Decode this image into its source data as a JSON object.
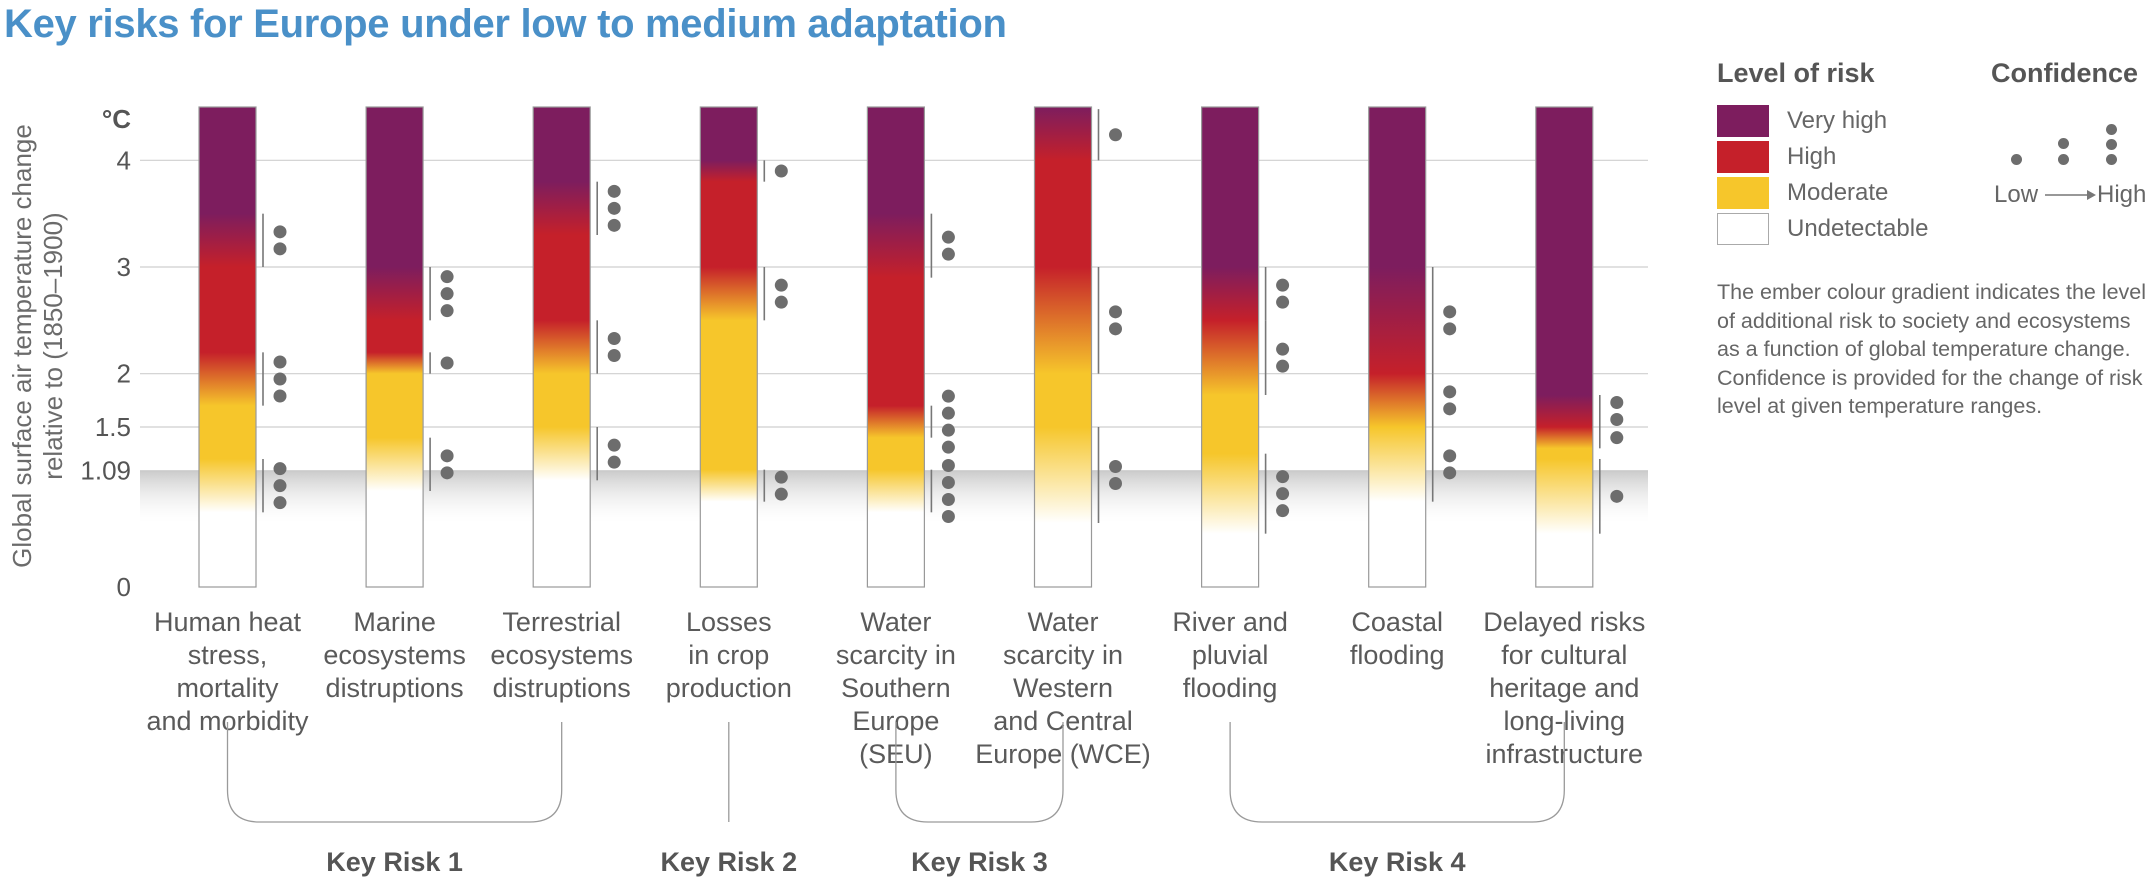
{
  "title": "Key risks for Europe under low to medium adaptation",
  "colors": {
    "very_high": "#7d1d5e",
    "high": "#c5202a",
    "moderate": "#f6c62b",
    "undetectable": "#ffffff",
    "title": "#4a90c8",
    "confidence_dot": "#6d6d6d"
  },
  "legend": {
    "level_title": "Level of risk",
    "levels": [
      "Very high",
      "High",
      "Moderate",
      "Undetectable"
    ],
    "confidence_title": "Confidence",
    "conf_low": "Low",
    "conf_high": "High",
    "note": "The ember colour gradient indicates the level of additional risk to society and ecosystems as a function of global temperature change. Confidence is provided for the change of risk level at given temperature ranges."
  },
  "chart_data": {
    "type": "burning-embers",
    "ylabel_line1": "Global surface air temperature change",
    "ylabel_line2": "relative to (1850–1900)",
    "unit": "°C",
    "ylim": [
      0,
      4.5
    ],
    "yticks": [
      {
        "value": 0,
        "label": "0"
      },
      {
        "value": 1.09,
        "label": "1.09"
      },
      {
        "value": 1.5,
        "label": "1.5"
      },
      {
        "value": 2,
        "label": "2"
      },
      {
        "value": 3,
        "label": "3"
      },
      {
        "value": 4,
        "label": "4"
      }
    ],
    "observed_warming": 1.09,
    "embers": [
      {
        "label": [
          "Human heat",
          "stress,",
          "mortality",
          "and morbidity"
        ],
        "transitions": [
          {
            "from": "undetectable",
            "to": "moderate",
            "start": 0.7,
            "end": 1.2,
            "confidence": 3
          },
          {
            "from": "moderate",
            "to": "high",
            "start": 1.7,
            "end": 2.2,
            "confidence": 3
          },
          {
            "from": "high",
            "to": "very_high",
            "start": 3.0,
            "end": 3.5,
            "confidence": 2
          }
        ]
      },
      {
        "label": [
          "Marine",
          "ecosystems",
          "distruptions"
        ],
        "transitions": [
          {
            "from": "undetectable",
            "to": "moderate",
            "start": 0.9,
            "end": 1.4,
            "confidence": 2
          },
          {
            "from": "moderate",
            "to": "high",
            "start": 2.0,
            "end": 2.2,
            "confidence": 1
          },
          {
            "from": "high",
            "to": "very_high",
            "start": 2.5,
            "end": 3.0,
            "confidence": 3
          }
        ]
      },
      {
        "label": [
          "Terrestrial",
          "ecosystems",
          "distruptions"
        ],
        "transitions": [
          {
            "from": "undetectable",
            "to": "moderate",
            "start": 1.0,
            "end": 1.5,
            "confidence": 2
          },
          {
            "from": "moderate",
            "to": "high",
            "start": 2.0,
            "end": 2.5,
            "confidence": 2
          },
          {
            "from": "high",
            "to": "very_high",
            "start": 3.3,
            "end": 3.8,
            "confidence": 3
          }
        ]
      },
      {
        "label": [
          "Losses",
          "in crop",
          "production"
        ],
        "transitions": [
          {
            "from": "undetectable",
            "to": "moderate",
            "start": 0.8,
            "end": 1.1,
            "confidence": 2
          },
          {
            "from": "moderate",
            "to": "high",
            "start": 2.5,
            "end": 3.0,
            "confidence": 2
          },
          {
            "from": "high",
            "to": "very_high",
            "start": 3.8,
            "end": 4.0,
            "confidence": 1
          }
        ]
      },
      {
        "label": [
          "Water",
          "scarcity in",
          "Southern",
          "Europe",
          "(SEU)"
        ],
        "transitions": [
          {
            "from": "undetectable",
            "to": "moderate",
            "start": 0.7,
            "end": 1.1,
            "confidence": 4
          },
          {
            "from": "moderate",
            "to": "high",
            "start": 1.4,
            "end": 1.7,
            "confidence": 4
          },
          {
            "from": "high",
            "to": "very_high",
            "start": 2.9,
            "end": 3.5,
            "confidence": 2
          }
        ]
      },
      {
        "label": [
          "Water",
          "scarcity in",
          "Western",
          "and Central",
          "Europe (WCE)"
        ],
        "transitions": [
          {
            "from": "undetectable",
            "to": "moderate",
            "start": 0.6,
            "end": 1.5,
            "confidence": 2
          },
          {
            "from": "moderate",
            "to": "high",
            "start": 2.0,
            "end": 3.0,
            "confidence": 2
          },
          {
            "from": "high",
            "to": "very_high",
            "start": 4.0,
            "end": 4.5,
            "confidence": 1
          }
        ]
      },
      {
        "label": [
          "River and",
          "pluvial",
          "flooding"
        ],
        "transitions": [
          {
            "from": "undetectable",
            "to": "moderate",
            "start": 0.5,
            "end": 1.25,
            "confidence": 3
          },
          {
            "from": "moderate",
            "to": "high",
            "start": 1.8,
            "end": 2.5,
            "confidence": 2
          },
          {
            "from": "high",
            "to": "very_high",
            "start": 2.5,
            "end": 3.0,
            "confidence": 2
          }
        ]
      },
      {
        "label": [
          "Coastal",
          "flooding"
        ],
        "transitions": [
          {
            "from": "undetectable",
            "to": "moderate",
            "start": 0.8,
            "end": 1.5,
            "confidence": 2
          },
          {
            "from": "moderate",
            "to": "high",
            "start": 1.5,
            "end": 2.0,
            "confidence": 2
          },
          {
            "from": "high",
            "to": "very_high",
            "start": 2.0,
            "end": 3.0,
            "confidence": 2
          }
        ]
      },
      {
        "label": [
          "Delayed risks",
          "for cultural",
          "heritage and",
          "long-living",
          "infrastructure"
        ],
        "transitions": [
          {
            "from": "undetectable",
            "to": "moderate",
            "start": 0.5,
            "end": 1.2,
            "confidence": 1
          },
          {
            "from": "moderate",
            "to": "high",
            "start": 1.3,
            "end": 1.5,
            "confidence": 1
          },
          {
            "from": "high",
            "to": "very_high",
            "start": 1.5,
            "end": 1.8,
            "confidence": 2
          }
        ]
      }
    ],
    "groups": [
      {
        "label": "Key Risk 1",
        "embers": [
          0,
          2
        ]
      },
      {
        "label": "Key Risk 2",
        "embers": [
          3,
          3
        ]
      },
      {
        "label": "Key Risk 3",
        "embers": [
          4,
          5
        ]
      },
      {
        "label": "Key Risk 4",
        "embers": [
          6,
          8
        ]
      }
    ]
  }
}
